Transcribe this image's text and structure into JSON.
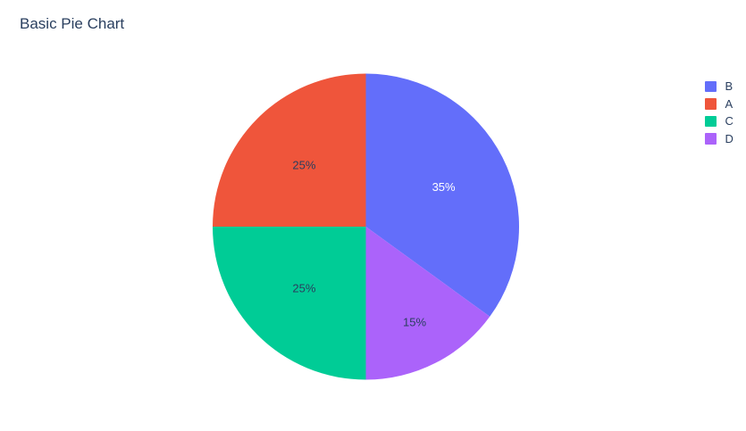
{
  "chart_data": {
    "type": "pie",
    "title": "Basic Pie Chart",
    "title_color": "#2a3f5f",
    "background": "#ffffff",
    "categories": [
      "A",
      "B",
      "C",
      "D"
    ],
    "values_by_category": {
      "A": 25,
      "B": 35,
      "C": 25,
      "D": 15
    },
    "slices_clockwise_from_top": [
      {
        "label": "B",
        "value": 35,
        "text": "35%",
        "color": "#636EFA",
        "text_color": "#FFFFFF"
      },
      {
        "label": "D",
        "value": 15,
        "text": "15%",
        "color": "#AB63FA",
        "text_color": "#2A3F5F"
      },
      {
        "label": "C",
        "value": 25,
        "text": "25%",
        "color": "#00CC96",
        "text_color": "#2A3F5F"
      },
      {
        "label": "A",
        "value": 25,
        "text": "25%",
        "color": "#EF553B",
        "text_color": "#2A3F5F"
      }
    ],
    "legend": {
      "position": "right",
      "items": [
        {
          "label": "B",
          "color": "#636EFA"
        },
        {
          "label": "A",
          "color": "#EF553B"
        },
        {
          "label": "C",
          "color": "#00CC96"
        },
        {
          "label": "D",
          "color": "#AB63FA"
        }
      ]
    }
  }
}
